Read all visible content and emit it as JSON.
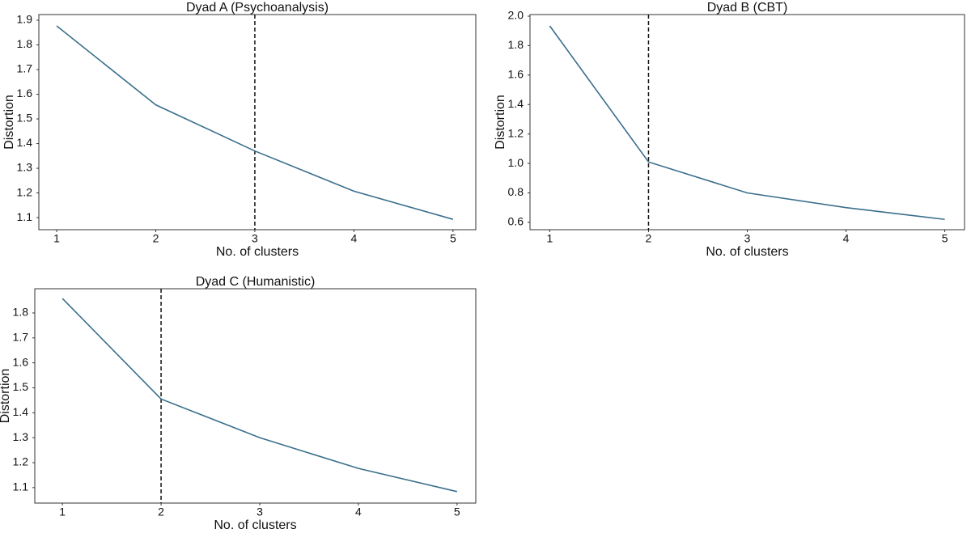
{
  "chart_data": [
    {
      "type": "line",
      "title": "Dyad A (Psychoanalysis)",
      "xlabel": "No. of clusters",
      "ylabel": "Distortion",
      "x": [
        1,
        2,
        3,
        4,
        5
      ],
      "values": [
        1.877,
        1.557,
        1.37,
        1.207,
        1.093
      ],
      "color": "#3a6f8c",
      "xlim": [
        0.82,
        5.23
      ],
      "ylim": [
        1.051,
        1.923
      ],
      "xticks": [
        1,
        2,
        3,
        4,
        5
      ],
      "yticks": [
        1.1,
        1.2,
        1.3,
        1.4,
        1.5,
        1.6,
        1.7,
        1.8,
        1.9
      ],
      "vline": 3
    },
    {
      "type": "line",
      "title": "Dyad B (CBT)",
      "xlabel": "No. of clusters",
      "ylabel": "Distortion",
      "x": [
        1,
        2,
        3,
        4,
        5
      ],
      "values": [
        1.934,
        1.01,
        0.8,
        0.7,
        0.62
      ],
      "color": "#3a6f8c",
      "xlim": [
        0.8,
        5.2
      ],
      "ylim": [
        0.55,
        2.011
      ],
      "xticks": [
        1,
        2,
        3,
        4,
        5
      ],
      "yticks": [
        {
          "value": 0.6,
          "label": "0.6"
        },
        {
          "value": 0.8,
          "label": "0.8"
        },
        {
          "value": 1.0,
          "label": "1.0"
        },
        {
          "value": 1.2,
          "label": "1.2"
        },
        {
          "value": 1.4,
          "label": "1.4"
        },
        {
          "value": 1.6,
          "label": "1.6"
        },
        {
          "value": 1.8,
          "label": "1.8"
        },
        {
          "value": 2.0,
          "label": "2.0"
        }
      ],
      "vline": 2
    },
    {
      "type": "line",
      "title": "Dyad C (Humanistic)",
      "xlabel": "No. of clusters",
      "ylabel": "Distortion",
      "x": [
        1,
        2,
        3,
        4,
        5
      ],
      "values": [
        1.858,
        1.455,
        1.3,
        1.177,
        1.084
      ],
      "color": "#3a6f8c",
      "xlim": [
        0.72,
        5.19
      ],
      "ylim": [
        1.038,
        1.897
      ],
      "xticks": [
        1,
        2,
        3,
        4,
        5
      ],
      "yticks": [
        1.1,
        1.2,
        1.3,
        1.4,
        1.5,
        1.6,
        1.7,
        1.8
      ],
      "vline": 2
    }
  ]
}
